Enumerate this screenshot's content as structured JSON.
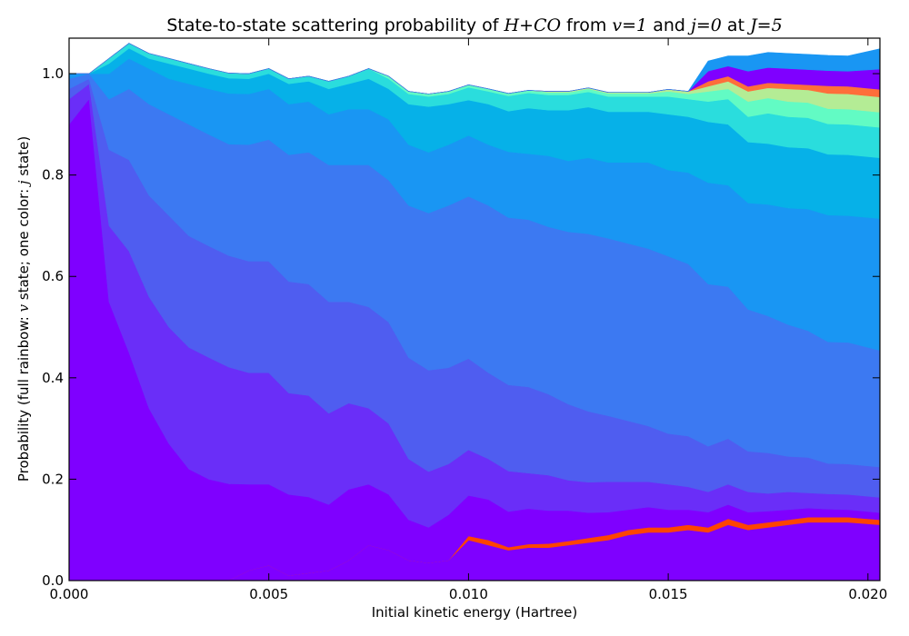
{
  "chart_data": {
    "type": "area",
    "stacked": true,
    "title_parts": [
      {
        "text": "State-to-state scattering probability of ",
        "math": false
      },
      {
        "text": "H+CO",
        "math": true
      },
      {
        "text": " from ",
        "math": false
      },
      {
        "text": "v=1",
        "math": true
      },
      {
        "text": " and ",
        "math": false
      },
      {
        "text": "j=0",
        "math": true
      },
      {
        "text": " at ",
        "math": false
      },
      {
        "text": "J=5",
        "math": true
      }
    ],
    "xlabel": "Initial kinetic energy (Hartree)",
    "ylabel_parts": [
      {
        "text": "Probability (full rainbow: ",
        "math": false
      },
      {
        "text": "v",
        "math": true
      },
      {
        "text": " state; one color: ",
        "math": false
      },
      {
        "text": "j",
        "math": true
      },
      {
        "text": " state)",
        "math": false
      }
    ],
    "xlim": [
      0.0,
      0.0203
    ],
    "ylim": [
      0.0,
      1.07
    ],
    "xticks": [
      0.0,
      0.005,
      0.01,
      0.015,
      0.02
    ],
    "xtick_labels": [
      "0.000",
      "0.005",
      "0.010",
      "0.015",
      "0.020"
    ],
    "yticks": [
      0.0,
      0.2,
      0.4,
      0.6,
      0.8,
      1.0
    ],
    "ytick_labels": [
      "0.0",
      "0.2",
      "0.4",
      "0.6",
      "0.8",
      "1.0"
    ],
    "x": [
      0.0,
      0.0005,
      0.001,
      0.0015,
      0.002,
      0.0025,
      0.003,
      0.0035,
      0.004,
      0.0045,
      0.005,
      0.0055,
      0.006,
      0.0065,
      0.007,
      0.0075,
      0.008,
      0.0085,
      0.009,
      0.0095,
      0.01,
      0.0105,
      0.011,
      0.0115,
      0.012,
      0.0125,
      0.013,
      0.0135,
      0.014,
      0.0145,
      0.015,
      0.0155,
      0.016,
      0.0165,
      0.017,
      0.0175,
      0.018,
      0.0185,
      0.019,
      0.0195,
      0.0203
    ],
    "series": [
      {
        "color": "#7f00ff",
        "values": [
          0.0,
          0.0,
          0.0,
          0.0,
          0.0,
          0.0,
          0.0,
          0.0,
          0.001,
          0.02,
          0.03,
          0.01,
          0.015,
          0.02,
          0.04,
          0.07,
          0.06,
          0.04,
          0.035,
          0.04,
          0.08,
          0.07,
          0.06,
          0.065,
          0.065,
          0.07,
          0.075,
          0.08,
          0.09,
          0.095,
          0.095,
          0.1,
          0.095,
          0.11,
          0.1,
          0.105,
          0.11,
          0.115,
          0.115,
          0.115,
          0.11
        ]
      },
      {
        "color": "#ff4400",
        "values": [
          0.0,
          0.0,
          0.0,
          0.0,
          0.0,
          0.0,
          0.0,
          0.0,
          0.0,
          0.0,
          0.0,
          0.0,
          0.0,
          0.0,
          0.0,
          0.0,
          0.0,
          0.0,
          0.0,
          0.0,
          0.008,
          0.01,
          0.006,
          0.007,
          0.008,
          0.008,
          0.009,
          0.01,
          0.01,
          0.01,
          0.01,
          0.01,
          0.01,
          0.012,
          0.01,
          0.01,
          0.01,
          0.01,
          0.01,
          0.01,
          0.01
        ]
      },
      {
        "color": "#7f00ff",
        "values": [
          0.9,
          0.95,
          0.55,
          0.45,
          0.34,
          0.27,
          0.22,
          0.2,
          0.19,
          0.17,
          0.16,
          0.16,
          0.15,
          0.13,
          0.14,
          0.12,
          0.11,
          0.08,
          0.07,
          0.09,
          0.08,
          0.08,
          0.07,
          0.07,
          0.065,
          0.06,
          0.05,
          0.045,
          0.04,
          0.04,
          0.035,
          0.03,
          0.03,
          0.028,
          0.025,
          0.022,
          0.02,
          0.018,
          0.016,
          0.015,
          0.014
        ]
      },
      {
        "color": "#6a2ef8",
        "values": [
          0.05,
          0.03,
          0.15,
          0.2,
          0.22,
          0.23,
          0.24,
          0.24,
          0.23,
          0.22,
          0.22,
          0.2,
          0.2,
          0.18,
          0.17,
          0.15,
          0.14,
          0.12,
          0.11,
          0.1,
          0.09,
          0.08,
          0.08,
          0.07,
          0.07,
          0.06,
          0.06,
          0.06,
          0.055,
          0.05,
          0.05,
          0.045,
          0.04,
          0.04,
          0.04,
          0.035,
          0.035,
          0.03,
          0.03,
          0.03,
          0.03
        ]
      },
      {
        "color": "#4f5df0",
        "values": [
          0.02,
          0.01,
          0.15,
          0.18,
          0.2,
          0.22,
          0.22,
          0.22,
          0.22,
          0.22,
          0.22,
          0.22,
          0.22,
          0.22,
          0.2,
          0.2,
          0.2,
          0.2,
          0.2,
          0.19,
          0.18,
          0.17,
          0.17,
          0.17,
          0.16,
          0.15,
          0.14,
          0.13,
          0.12,
          0.11,
          0.1,
          0.1,
          0.09,
          0.09,
          0.08,
          0.08,
          0.07,
          0.07,
          0.06,
          0.06,
          0.06
        ]
      },
      {
        "color": "#3c79f2",
        "values": [
          0.02,
          0.01,
          0.1,
          0.14,
          0.18,
          0.2,
          0.22,
          0.22,
          0.22,
          0.23,
          0.24,
          0.25,
          0.26,
          0.27,
          0.27,
          0.28,
          0.28,
          0.3,
          0.31,
          0.32,
          0.32,
          0.33,
          0.33,
          0.33,
          0.33,
          0.34,
          0.35,
          0.35,
          0.35,
          0.35,
          0.35,
          0.34,
          0.32,
          0.3,
          0.28,
          0.27,
          0.26,
          0.25,
          0.24,
          0.24,
          0.23
        ]
      },
      {
        "color": "#1996f3",
        "values": [
          0.01,
          0.0,
          0.05,
          0.06,
          0.07,
          0.07,
          0.08,
          0.09,
          0.1,
          0.1,
          0.1,
          0.1,
          0.1,
          0.1,
          0.11,
          0.11,
          0.12,
          0.12,
          0.12,
          0.12,
          0.12,
          0.12,
          0.13,
          0.13,
          0.14,
          0.14,
          0.15,
          0.15,
          0.16,
          0.17,
          0.17,
          0.18,
          0.2,
          0.2,
          0.21,
          0.22,
          0.23,
          0.24,
          0.25,
          0.25,
          0.26
        ]
      },
      {
        "color": "#06b1e8",
        "values": [
          0.0,
          0.0,
          0.02,
          0.02,
          0.02,
          0.03,
          0.03,
          0.03,
          0.03,
          0.03,
          0.03,
          0.04,
          0.04,
          0.05,
          0.05,
          0.06,
          0.06,
          0.08,
          0.09,
          0.08,
          0.07,
          0.08,
          0.08,
          0.09,
          0.09,
          0.1,
          0.1,
          0.1,
          0.1,
          0.1,
          0.11,
          0.11,
          0.12,
          0.12,
          0.12,
          0.12,
          0.12,
          0.12,
          0.12,
          0.12,
          0.12
        ]
      },
      {
        "color": "#2adddd",
        "values": [
          0.0,
          0.0,
          0.01,
          0.01,
          0.01,
          0.01,
          0.01,
          0.01,
          0.01,
          0.01,
          0.01,
          0.01,
          0.01,
          0.015,
          0.015,
          0.02,
          0.02,
          0.02,
          0.02,
          0.02,
          0.025,
          0.025,
          0.03,
          0.03,
          0.03,
          0.03,
          0.03,
          0.03,
          0.03,
          0.03,
          0.035,
          0.035,
          0.04,
          0.05,
          0.05,
          0.06,
          0.06,
          0.06,
          0.06,
          0.06,
          0.06
        ]
      },
      {
        "color": "#62fbc4",
        "values": [
          0.0,
          0.0,
          0.0,
          0.0,
          0.0,
          0.0,
          0.0,
          0.0,
          0.0,
          0.0,
          0.0,
          0.0,
          0.0,
          0.0,
          0.0,
          0.0,
          0.005,
          0.005,
          0.005,
          0.005,
          0.005,
          0.005,
          0.005,
          0.005,
          0.005,
          0.005,
          0.006,
          0.006,
          0.006,
          0.006,
          0.01,
          0.01,
          0.02,
          0.02,
          0.03,
          0.03,
          0.03,
          0.03,
          0.03,
          0.03,
          0.03
        ]
      },
      {
        "color": "#b4ec95",
        "values": [
          0.0,
          0.0,
          0.0,
          0.0,
          0.0,
          0.0,
          0.0,
          0.0,
          0.0,
          0.0,
          0.0,
          0.0,
          0.0,
          0.0,
          0.0,
          0.0,
          0.0,
          0.0,
          0.0,
          0.0,
          0.0,
          0.0,
          0.0,
          0.0,
          0.002,
          0.002,
          0.002,
          0.002,
          0.002,
          0.002,
          0.004,
          0.005,
          0.01,
          0.015,
          0.02,
          0.02,
          0.025,
          0.025,
          0.03,
          0.03,
          0.03
        ]
      },
      {
        "color": "#ff6e3a",
        "values": [
          0.0,
          0.0,
          0.0,
          0.0,
          0.0,
          0.0,
          0.0,
          0.0,
          0.0,
          0.0,
          0.0,
          0.0,
          0.0,
          0.0,
          0.0,
          0.0,
          0.0,
          0.0,
          0.0,
          0.0,
          0.0,
          0.0,
          0.0,
          0.0,
          0.0,
          0.0,
          0.0,
          0.0,
          0.0,
          0.0,
          0.0,
          0.0,
          0.01,
          0.01,
          0.01,
          0.01,
          0.01,
          0.01,
          0.015,
          0.015,
          0.015
        ]
      },
      {
        "color": "#7f00ff",
        "values": [
          0.0,
          0.0,
          0.0,
          0.0,
          0.0,
          0.0,
          0.0,
          0.0,
          0.0,
          0.0,
          0.0,
          0.0,
          0.0,
          0.0,
          0.0,
          0.0,
          0.0,
          0.0,
          0.0,
          0.0,
          0.0,
          0.0,
          0.0,
          0.0,
          0.0,
          0.0,
          0.0,
          0.0,
          0.0,
          0.0,
          0.0,
          0.0,
          0.02,
          0.02,
          0.03,
          0.03,
          0.03,
          0.03,
          0.03,
          0.03,
          0.04
        ]
      },
      {
        "color": "#1996f3",
        "values": [
          0.0,
          0.0,
          0.0,
          0.0,
          0.0,
          0.0,
          0.0,
          0.0,
          0.0,
          0.0,
          0.0,
          0.0,
          0.0,
          0.0,
          0.0,
          0.0,
          0.0,
          0.0,
          0.0,
          0.0,
          0.0,
          0.0,
          0.0,
          0.0,
          0.0,
          0.0,
          0.0,
          0.0,
          0.0,
          0.0,
          0.0,
          0.0,
          0.02,
          0.02,
          0.03,
          0.03,
          0.03,
          0.03,
          0.03,
          0.03,
          0.04
        ]
      }
    ]
  }
}
